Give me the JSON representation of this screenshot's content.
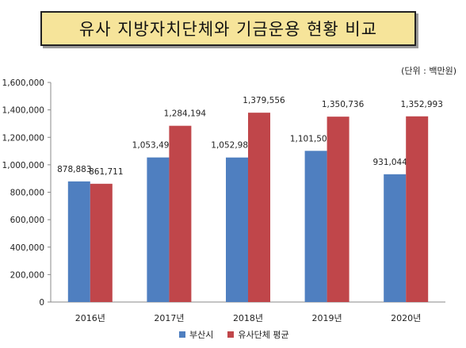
{
  "title": "유사 지방자치단체와 기금운용 현황 비교",
  "unit_note": "(단위 : 백만원)",
  "colors": {
    "busan": "#4f7fc0",
    "avg": "#c0464a"
  },
  "chart_data": {
    "type": "bar",
    "categories": [
      "2016년",
      "2017년",
      "2018년",
      "2019년",
      "2020년"
    ],
    "series": [
      {
        "name": "부산시",
        "values": [
          878883,
          1053491,
          1052983,
          1101501,
          931044
        ],
        "labels": [
          "878,883",
          "1,053,491",
          "1,052,983",
          "1,101,501",
          "931,044"
        ]
      },
      {
        "name": "유사단체 평균",
        "values": [
          861711,
          1284194,
          1379556,
          1350736,
          1352993
        ],
        "labels": [
          "861,711",
          "1,284,194",
          "1,379,556",
          "1,350,736",
          "1,352,993"
        ]
      }
    ],
    "ylim": [
      0,
      1600000
    ],
    "yticks": [
      "0",
      "200,000",
      "400,000",
      "600,000",
      "800,000",
      "1,000,000",
      "1,200,000",
      "1,400,000",
      "1,600,000"
    ],
    "grid": false,
    "legend": "bottom"
  }
}
